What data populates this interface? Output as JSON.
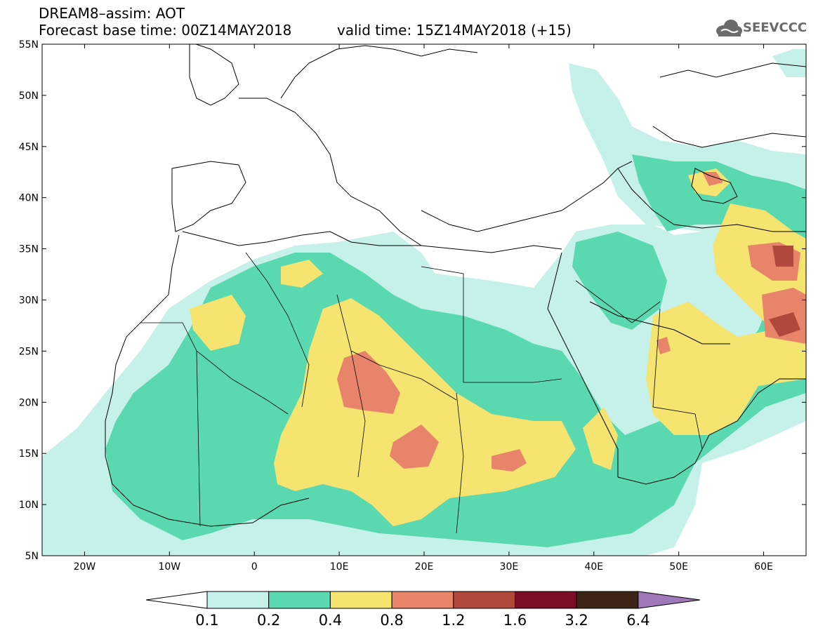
{
  "title": {
    "line1": "DREAM8–assim: AOT",
    "line2": "Forecast base time: 00Z14MAY2018",
    "valid": "valid time: 15Z14MAY2018 (+15)"
  },
  "logo": {
    "text": "SEEVCCC",
    "icon": "cloud-icon"
  },
  "map": {
    "lon_range": [
      -25,
      65
    ],
    "lat_range": [
      5,
      55
    ],
    "lat_ticks": [
      "5N",
      "10N",
      "15N",
      "20N",
      "25N",
      "30N",
      "35N",
      "40N",
      "45N",
      "50N",
      "55N"
    ],
    "lon_ticks": [
      "20W",
      "10W",
      "0",
      "10E",
      "20E",
      "30E",
      "40E",
      "50E",
      "60E"
    ]
  },
  "colorbar": {
    "levels": [
      "0.1",
      "0.2",
      "0.4",
      "0.8",
      "1.2",
      "1.6",
      "3.2",
      "6.4"
    ],
    "colors": [
      "#ffffff",
      "#c6f1ea",
      "#5ad8b0",
      "#f5e46f",
      "#e8846a",
      "#b2473b",
      "#7d0d27",
      "#3c2416",
      "#9f78b9"
    ]
  }
}
